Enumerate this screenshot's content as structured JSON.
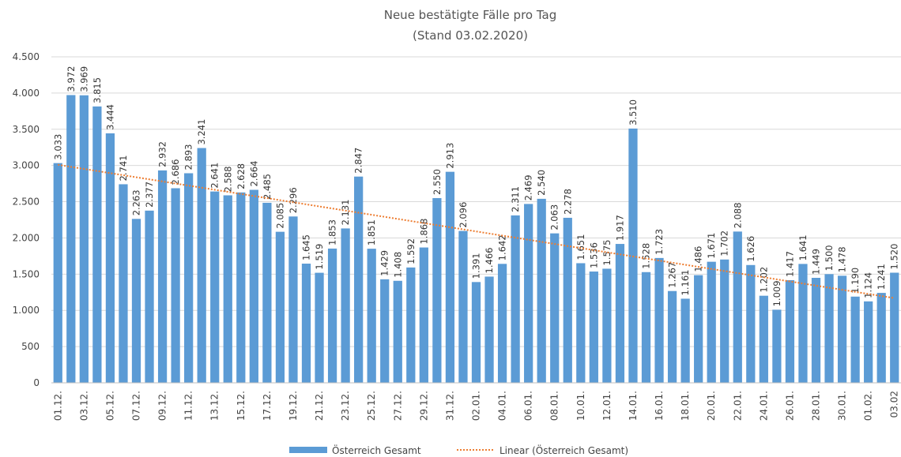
{
  "chart_data": {
    "type": "bar",
    "title": "Neue bestätigte Fälle pro Tag",
    "subtitle": "(Stand 03.02.2020)",
    "categories": [
      "01.12.",
      null,
      "03.12.",
      null,
      "05.12.",
      null,
      "07.12.",
      null,
      "09.12.",
      null,
      "11.12.",
      null,
      "13.12.",
      null,
      "15.12.",
      null,
      "17.12.",
      null,
      "19.12.",
      null,
      "21.12.",
      null,
      "23.12.",
      null,
      "25.12.",
      null,
      "27.12.",
      null,
      "29.12.",
      null,
      "31.12.",
      null,
      "02.01.",
      null,
      "04.01.",
      null,
      "06.01.",
      null,
      "08.01.",
      null,
      "10.01.",
      null,
      "12.01.",
      null,
      "14.01.",
      null,
      "16.01.",
      null,
      "18.01.",
      null,
      "20.01.",
      null,
      "22.01.",
      null,
      "24.01.",
      null,
      "26.01.",
      null,
      "28.01.",
      null,
      "30.01.",
      null,
      "01.02.",
      null,
      "03.02"
    ],
    "series": [
      {
        "name": "Österreich Gesamt",
        "color": "#5b9bd5",
        "values": [
          3033,
          3972,
          3969,
          3815,
          3444,
          2741,
          2263,
          2377,
          2932,
          2686,
          2893,
          3241,
          2641,
          2588,
          2628,
          2664,
          2485,
          2085,
          2296,
          1645,
          1519,
          1853,
          2131,
          2847,
          1851,
          1429,
          1408,
          1592,
          1868,
          2550,
          2913,
          2096,
          1391,
          1466,
          1642,
          2311,
          2469,
          2540,
          2063,
          2278,
          1651,
          1536,
          1575,
          1917,
          3510,
          1528,
          1723,
          1267,
          1161,
          1486,
          1671,
          1702,
          2088,
          1626,
          1202,
          1009,
          1417,
          1641,
          1449,
          1500,
          1478,
          1190,
          1124,
          1241,
          1520
        ],
        "value_labels": [
          "3.033",
          "3.972",
          "3.969",
          "3.815",
          "3.444",
          "2.741",
          "2.263",
          "2.377",
          "2.932",
          "2.686",
          "2.893",
          "3.241",
          "2.641",
          "2.588",
          "2.628",
          "2.664",
          "2.485",
          "2.085",
          "2.296",
          "1.645",
          "1.519",
          "1.853",
          "2.131",
          "2.847",
          "1.851",
          "1.429",
          "1.408",
          "1.592",
          "1.868",
          "2.550",
          "2.913",
          "2.096",
          "1.391",
          "1.466",
          "1.642",
          "2.311",
          "2.469",
          "2.540",
          "2.063",
          "2.278",
          "1.651",
          "1.536",
          "1.575",
          "1.917",
          "3.510",
          "1.528",
          "1.723",
          "1.267",
          "1.161",
          "1.486",
          "1.671",
          "1.702",
          "2.088",
          "1.626",
          "1.202",
          "1.009",
          "1.417",
          "1.641",
          "1.449",
          "1.500",
          "1.478",
          "1.190",
          "1.124",
          "1.241",
          "1.520"
        ]
      }
    ],
    "trendline": {
      "name": "Linear (Österreich Gesamt)",
      "color": "#ed7d31"
    },
    "ylim": [
      0,
      4500
    ],
    "yticks": [
      0,
      500,
      {
        "value": 1000,
        "label": "1.000"
      },
      {
        "value": 1500,
        "label": "1.500"
      },
      {
        "value": 2000,
        "label": "2.000"
      },
      {
        "value": 2500,
        "label": "2.500"
      },
      {
        "value": 3000,
        "label": "3.000"
      },
      {
        "value": 3500,
        "label": "3.500"
      },
      {
        "value": 4000,
        "label": "4.000"
      },
      {
        "value": 4500,
        "label": "4.500"
      }
    ],
    "grid": true,
    "legend": "bottom"
  }
}
